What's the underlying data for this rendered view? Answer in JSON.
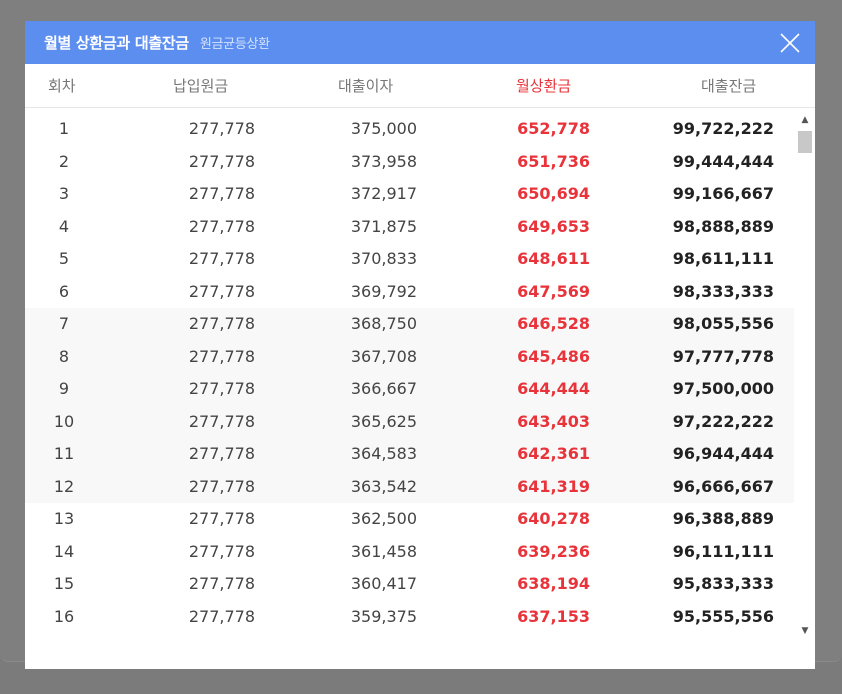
{
  "modal": {
    "title": "월별 상환금과 대출잔금",
    "subtitle": "원금균등상환"
  },
  "columns": {
    "round": "회차",
    "principal": "납입원금",
    "interest": "대출이자",
    "monthly": "월상환금",
    "balance": "대출잔금"
  },
  "accent_colors": {
    "header_bg": "#5c8ef0",
    "monthly_red": "#e8333a"
  },
  "rows": [
    {
      "round": "1",
      "principal": "277,778",
      "interest": "375,000",
      "monthly": "652,778",
      "balance": "99,722,222"
    },
    {
      "round": "2",
      "principal": "277,778",
      "interest": "373,958",
      "monthly": "651,736",
      "balance": "99,444,444"
    },
    {
      "round": "3",
      "principal": "277,778",
      "interest": "372,917",
      "monthly": "650,694",
      "balance": "99,166,667"
    },
    {
      "round": "4",
      "principal": "277,778",
      "interest": "371,875",
      "monthly": "649,653",
      "balance": "98,888,889"
    },
    {
      "round": "5",
      "principal": "277,778",
      "interest": "370,833",
      "monthly": "648,611",
      "balance": "98,611,111"
    },
    {
      "round": "6",
      "principal": "277,778",
      "interest": "369,792",
      "monthly": "647,569",
      "balance": "98,333,333"
    },
    {
      "round": "7",
      "principal": "277,778",
      "interest": "368,750",
      "monthly": "646,528",
      "balance": "98,055,556"
    },
    {
      "round": "8",
      "principal": "277,778",
      "interest": "367,708",
      "monthly": "645,486",
      "balance": "97,777,778"
    },
    {
      "round": "9",
      "principal": "277,778",
      "interest": "366,667",
      "monthly": "644,444",
      "balance": "97,500,000"
    },
    {
      "round": "10",
      "principal": "277,778",
      "interest": "365,625",
      "monthly": "643,403",
      "balance": "97,222,222"
    },
    {
      "round": "11",
      "principal": "277,778",
      "interest": "364,583",
      "monthly": "642,361",
      "balance": "96,944,444"
    },
    {
      "round": "12",
      "principal": "277,778",
      "interest": "363,542",
      "monthly": "641,319",
      "balance": "96,666,667"
    },
    {
      "round": "13",
      "principal": "277,778",
      "interest": "362,500",
      "monthly": "640,278",
      "balance": "96,388,889"
    },
    {
      "round": "14",
      "principal": "277,778",
      "interest": "361,458",
      "monthly": "639,236",
      "balance": "96,111,111"
    },
    {
      "round": "15",
      "principal": "277,778",
      "interest": "360,417",
      "monthly": "638,194",
      "balance": "95,833,333"
    },
    {
      "round": "16",
      "principal": "277,778",
      "interest": "359,375",
      "monthly": "637,153",
      "balance": "95,555,556"
    }
  ],
  "icons": {
    "close": "close-icon",
    "scroll_up": "scroll-up-arrow-icon",
    "scroll_down": "scroll-down-arrow-icon"
  }
}
